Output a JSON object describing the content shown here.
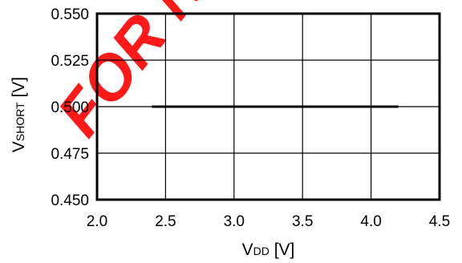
{
  "watermark": {
    "text": "FOR NEW DESIGN",
    "color": "#ff0000"
  },
  "chart_data": {
    "type": "line",
    "x_axis": {
      "label_main": "V",
      "label_sub": "DD",
      "label_unit": " [V]",
      "range": [
        2.0,
        4.5
      ],
      "ticks": [
        2.0,
        2.5,
        3.0,
        3.5,
        4.0,
        4.5
      ],
      "tick_labels": [
        "2.0",
        "2.5",
        "3.0",
        "3.5",
        "4.0",
        "4.5"
      ]
    },
    "y_axis": {
      "label_main": "V",
      "label_sub": "SHORT",
      "label_unit": " [V]",
      "range": [
        0.45,
        0.55
      ],
      "ticks": [
        0.45,
        0.475,
        0.5,
        0.525,
        0.55
      ],
      "tick_labels": [
        "0.450",
        "0.475",
        "0.500",
        "0.525",
        "0.550"
      ]
    },
    "grid": true,
    "series": [
      {
        "x": [
          2.4,
          2.8,
          3.2,
          3.6,
          4.0,
          4.2
        ],
        "y": [
          0.5,
          0.5,
          0.5,
          0.5,
          0.5,
          0.5
        ],
        "color": "#000000"
      }
    ]
  }
}
